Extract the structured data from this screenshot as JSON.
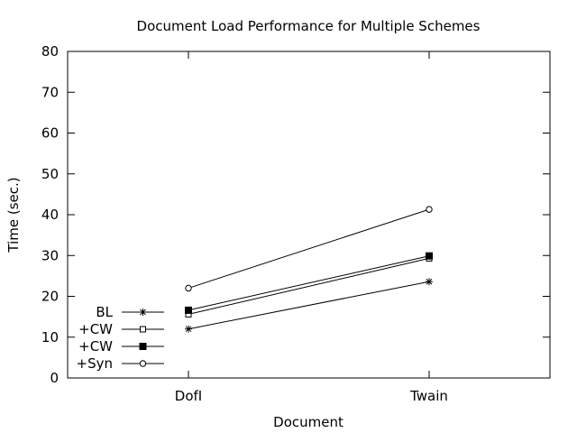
{
  "chart_data": {
    "type": "line",
    "title": "Document Load Performance for Multiple Schemes",
    "xlabel": "Document",
    "ylabel": "Time (sec.)",
    "categories": [
      "DofI",
      "Twain"
    ],
    "ylim": [
      0,
      80
    ],
    "yticks": [
      0,
      10,
      20,
      30,
      40,
      50,
      60,
      70,
      80
    ],
    "grid": false,
    "legend_position": "bottom-left",
    "series": [
      {
        "name": "BL",
        "marker": "star",
        "values": [
          12.0,
          23.6
        ]
      },
      {
        "name": "+CW",
        "marker": "open-square",
        "values": [
          15.6,
          29.3
        ]
      },
      {
        "name": "+CW",
        "marker": "filled-square",
        "values": [
          16.6,
          29.9
        ]
      },
      {
        "name": "+Syn",
        "marker": "open-circle",
        "values": [
          22.0,
          41.3
        ]
      }
    ]
  }
}
